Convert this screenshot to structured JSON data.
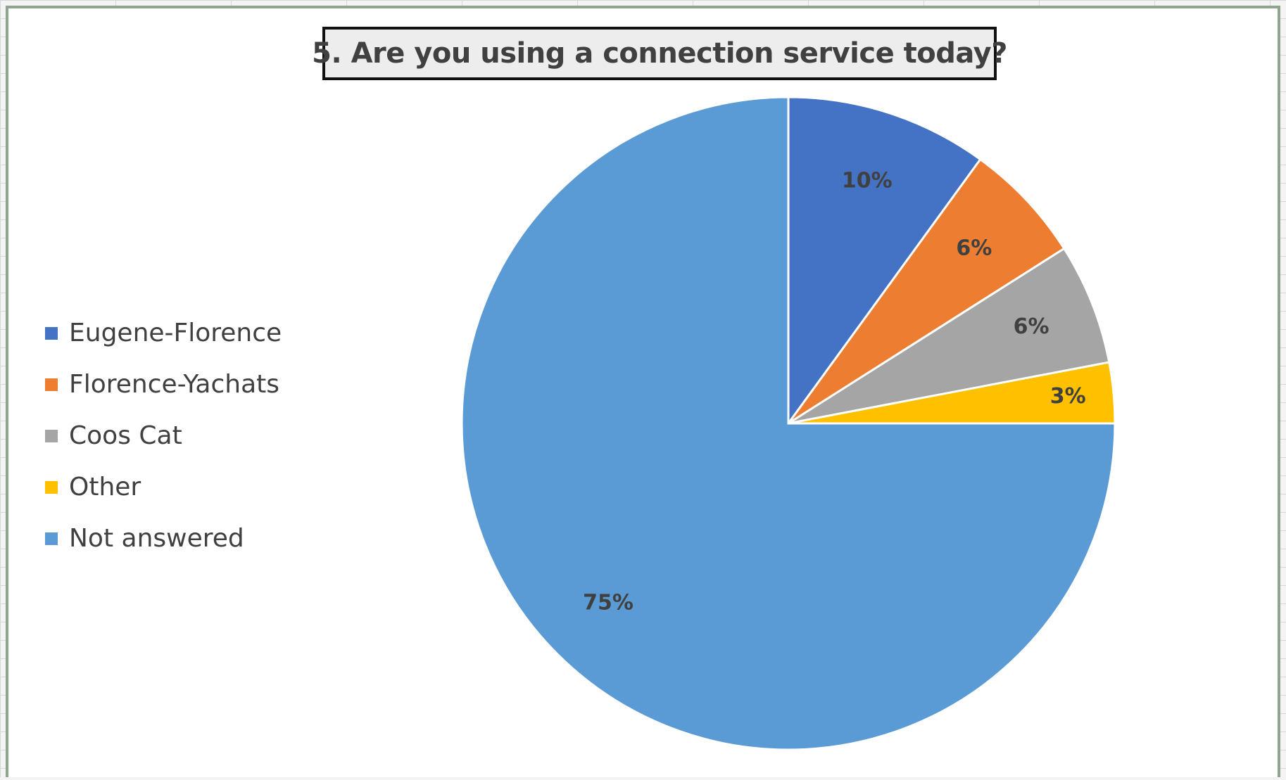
{
  "chart_data": {
    "type": "pie",
    "title": "5. Are you using a connection service today?",
    "categories": [
      "Eugene-Florence",
      "Florence-Yachats",
      "Coos Cat",
      "Other",
      "Not answered"
    ],
    "values": [
      10,
      6,
      6,
      3,
      75
    ],
    "data_labels": [
      "10%",
      "6%",
      "6%",
      "3%",
      "75%"
    ],
    "colors": [
      "#4472C4",
      "#ED7D31",
      "#A5A5A5",
      "#FFC000",
      "#5B9BD5"
    ],
    "legend_position": "left",
    "start_angle_deg": 0,
    "direction": "clockwise"
  },
  "legend": {
    "items": [
      {
        "label": "Eugene-Florence",
        "color": "#4472C4"
      },
      {
        "label": "Florence-Yachats",
        "color": "#ED7D31"
      },
      {
        "label": "Coos Cat",
        "color": "#A5A5A5"
      },
      {
        "label": "Other",
        "color": "#FFC000"
      },
      {
        "label": "Not answered",
        "color": "#5B9BD5"
      }
    ]
  }
}
